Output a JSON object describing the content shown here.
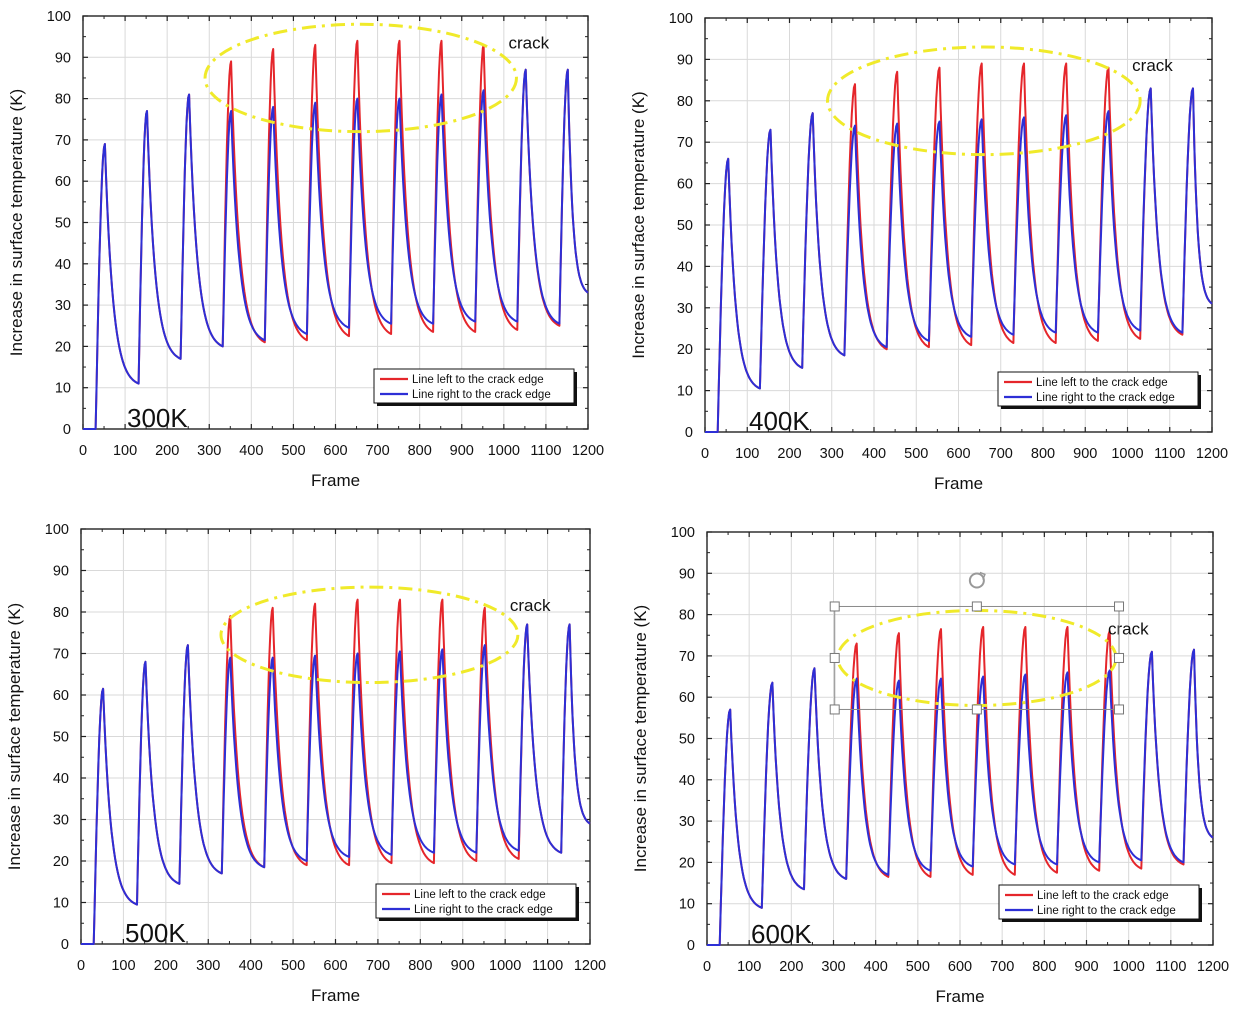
{
  "colors": {
    "left": "#e5262b",
    "right": "#2d2fd6",
    "ellipse": "#f0ea2a",
    "frame": "#222222",
    "grid": "#d9d9d9"
  },
  "chart_data": [
    {
      "type": "line",
      "panel_label": "300K",
      "xlabel": "Frame",
      "ylabel": "Increase in surface temperature (K)",
      "xlim": [
        0,
        1200
      ],
      "ylim": [
        0,
        100
      ],
      "x_ticks": [
        0,
        100,
        200,
        300,
        400,
        500,
        600,
        700,
        800,
        900,
        1000,
        1100,
        1200
      ],
      "y_ticks": [
        0,
        10,
        20,
        30,
        40,
        50,
        60,
        70,
        80,
        90,
        100
      ],
      "grid": true,
      "legend_position": "bottom-right",
      "annotation": "crack",
      "crack_region": {
        "x_range": [
          290,
          1030
        ],
        "y_range": [
          72,
          98
        ]
      },
      "series": [
        {
          "name": "Line left to the crack edge",
          "peaks": [
            [
              52,
              69
            ],
            [
              152,
              77
            ],
            [
              252,
              81
            ],
            [
              352,
              89
            ],
            [
              452,
              92
            ],
            [
              552,
              93
            ],
            [
              652,
              94
            ],
            [
              752,
              94
            ],
            [
              852,
              94
            ],
            [
              952,
              93
            ],
            [
              1052,
              87
            ],
            [
              1152,
              87
            ]
          ],
          "valleys": [
            [
              30,
              0
            ],
            [
              132,
              11
            ],
            [
              232,
              17
            ],
            [
              332,
              20
            ],
            [
              432,
              21
            ],
            [
              532,
              21.5
            ],
            [
              632,
              22.5
            ],
            [
              732,
              23
            ],
            [
              832,
              23.5
            ],
            [
              932,
              23.5
            ],
            [
              1032,
              24
            ],
            [
              1132,
              25
            ],
            [
              1200,
              33
            ]
          ]
        },
        {
          "name": "Line right to the crack edge",
          "peaks": [
            [
              52,
              69
            ],
            [
              152,
              77
            ],
            [
              252,
              81
            ],
            [
              352,
              77
            ],
            [
              452,
              78
            ],
            [
              552,
              79
            ],
            [
              652,
              80
            ],
            [
              752,
              80
            ],
            [
              852,
              81
            ],
            [
              952,
              82
            ],
            [
              1052,
              87
            ],
            [
              1152,
              87
            ]
          ],
          "valleys": [
            [
              30,
              0
            ],
            [
              132,
              11
            ],
            [
              232,
              17
            ],
            [
              332,
              20
            ],
            [
              432,
              21.5
            ],
            [
              532,
              23
            ],
            [
              632,
              24.5
            ],
            [
              732,
              25.5
            ],
            [
              832,
              25.5
            ],
            [
              932,
              26
            ],
            [
              1032,
              26
            ],
            [
              1132,
              25.5
            ],
            [
              1200,
              33
            ]
          ]
        }
      ]
    },
    {
      "type": "line",
      "panel_label": "400K",
      "xlabel": "Frame",
      "ylabel": "Increase in surface temperature (K)",
      "xlim": [
        0,
        1200
      ],
      "ylim": [
        0,
        100
      ],
      "x_ticks": [
        0,
        100,
        200,
        300,
        400,
        500,
        600,
        700,
        800,
        900,
        1000,
        1100,
        1200
      ],
      "y_ticks": [
        0,
        10,
        20,
        30,
        40,
        50,
        60,
        70,
        80,
        90,
        100
      ],
      "grid": true,
      "legend_position": "bottom-right",
      "annotation": "crack",
      "crack_region": {
        "x_range": [
          290,
          1030
        ],
        "y_range": [
          67,
          93
        ]
      },
      "series": [
        {
          "name": "Line left to the crack edge",
          "peaks": [
            [
              55,
              66
            ],
            [
              155,
              73
            ],
            [
              255,
              77
            ],
            [
              355,
              84
            ],
            [
              455,
              87
            ],
            [
              555,
              88
            ],
            [
              655,
              89
            ],
            [
              755,
              89
            ],
            [
              855,
              89
            ],
            [
              955,
              88
            ],
            [
              1055,
              83
            ],
            [
              1155,
              83
            ]
          ],
          "valleys": [
            [
              30,
              0
            ],
            [
              130,
              10.5
            ],
            [
              230,
              15.5
            ],
            [
              330,
              18.5
            ],
            [
              430,
              20
            ],
            [
              530,
              20.5
            ],
            [
              630,
              21
            ],
            [
              730,
              21.5
            ],
            [
              830,
              21.5
            ],
            [
              930,
              22
            ],
            [
              1030,
              22.5
            ],
            [
              1130,
              23.5
            ],
            [
              1200,
              31
            ]
          ]
        },
        {
          "name": "Line right to the crack edge",
          "peaks": [
            [
              55,
              66
            ],
            [
              155,
              73
            ],
            [
              255,
              77
            ],
            [
              355,
              74
            ],
            [
              455,
              74.5
            ],
            [
              555,
              75
            ],
            [
              655,
              75.5
            ],
            [
              755,
              76
            ],
            [
              855,
              76.5
            ],
            [
              955,
              77.5
            ],
            [
              1055,
              83
            ],
            [
              1155,
              83
            ]
          ],
          "valleys": [
            [
              30,
              0
            ],
            [
              130,
              10.5
            ],
            [
              230,
              15.5
            ],
            [
              330,
              18.5
            ],
            [
              430,
              20.5
            ],
            [
              530,
              22
            ],
            [
              630,
              23
            ],
            [
              730,
              23.5
            ],
            [
              830,
              24
            ],
            [
              930,
              24
            ],
            [
              1030,
              24.5
            ],
            [
              1130,
              24
            ],
            [
              1200,
              31
            ]
          ]
        }
      ]
    },
    {
      "type": "line",
      "panel_label": "500K",
      "xlabel": "Frame",
      "ylabel": "Increase in surface temperature (K)",
      "xlim": [
        0,
        1200
      ],
      "ylim": [
        0,
        100
      ],
      "x_ticks": [
        0,
        100,
        200,
        300,
        400,
        500,
        600,
        700,
        800,
        900,
        1000,
        1100,
        1200
      ],
      "y_ticks": [
        0,
        10,
        20,
        30,
        40,
        50,
        60,
        70,
        80,
        90,
        100
      ],
      "grid": true,
      "legend_position": "bottom-right",
      "annotation": "crack",
      "crack_region": {
        "x_range": [
          330,
          1030
        ],
        "y_range": [
          63,
          86
        ]
      },
      "series": [
        {
          "name": "Line left to the crack edge",
          "peaks": [
            [
              52,
              61.5
            ],
            [
              152,
              68
            ],
            [
              252,
              72
            ],
            [
              352,
              79
            ],
            [
              452,
              81
            ],
            [
              552,
              82
            ],
            [
              652,
              83
            ],
            [
              752,
              83
            ],
            [
              852,
              83
            ],
            [
              952,
              81
            ],
            [
              1052,
              77
            ],
            [
              1152,
              77
            ]
          ],
          "valleys": [
            [
              30,
              0
            ],
            [
              132,
              9.5
            ],
            [
              232,
              14.5
            ],
            [
              332,
              17
            ],
            [
              432,
              18.5
            ],
            [
              532,
              19
            ],
            [
              632,
              19
            ],
            [
              732,
              19.5
            ],
            [
              832,
              19.5
            ],
            [
              932,
              20
            ],
            [
              1032,
              20.5
            ],
            [
              1132,
              22
            ],
            [
              1200,
              29
            ]
          ]
        },
        {
          "name": "Line right to the crack edge",
          "peaks": [
            [
              52,
              61.5
            ],
            [
              152,
              68
            ],
            [
              252,
              72
            ],
            [
              352,
              69
            ],
            [
              452,
              69
            ],
            [
              552,
              69.5
            ],
            [
              652,
              70
            ],
            [
              752,
              70.5
            ],
            [
              852,
              71
            ],
            [
              952,
              72
            ],
            [
              1052,
              77
            ],
            [
              1152,
              77
            ]
          ],
          "valleys": [
            [
              30,
              0
            ],
            [
              132,
              9.5
            ],
            [
              232,
              14.5
            ],
            [
              332,
              17
            ],
            [
              432,
              18.5
            ],
            [
              532,
              20
            ],
            [
              632,
              21
            ],
            [
              732,
              21.5
            ],
            [
              832,
              22
            ],
            [
              932,
              22
            ],
            [
              1032,
              22.5
            ],
            [
              1132,
              22
            ],
            [
              1200,
              29
            ]
          ]
        }
      ]
    },
    {
      "type": "line",
      "panel_label": "600K",
      "xlabel": "Frame",
      "ylabel": "Increase in surface temperature (K)",
      "xlim": [
        0,
        1200
      ],
      "ylim": [
        0,
        100
      ],
      "x_ticks": [
        0,
        100,
        200,
        300,
        400,
        500,
        600,
        700,
        800,
        900,
        1000,
        1100,
        1200
      ],
      "y_ticks": [
        0,
        10,
        20,
        30,
        40,
        50,
        60,
        70,
        80,
        90,
        100
      ],
      "grid": true,
      "legend_position": "bottom-right",
      "annotation": "crack",
      "crack_region": {
        "x_range": [
          310,
          970
        ],
        "y_range": [
          58,
          81
        ]
      },
      "series": [
        {
          "name": "Line left to the crack edge",
          "peaks": [
            [
              55,
              57
            ],
            [
              155,
              63.5
            ],
            [
              255,
              67
            ],
            [
              355,
              73
            ],
            [
              455,
              75.5
            ],
            [
              555,
              76.5
            ],
            [
              655,
              77
            ],
            [
              755,
              77
            ],
            [
              855,
              77
            ],
            [
              955,
              76
            ],
            [
              1055,
              71
            ],
            [
              1155,
              71.5
            ]
          ],
          "valleys": [
            [
              30,
              0
            ],
            [
              130,
              9
            ],
            [
              230,
              13.5
            ],
            [
              330,
              16
            ],
            [
              430,
              16.5
            ],
            [
              530,
              16.5
            ],
            [
              630,
              17
            ],
            [
              730,
              17
            ],
            [
              830,
              17.5
            ],
            [
              930,
              18
            ],
            [
              1030,
              18.5
            ],
            [
              1130,
              19.5
            ],
            [
              1200,
              26
            ]
          ]
        },
        {
          "name": "Line right to the crack edge",
          "peaks": [
            [
              55,
              57
            ],
            [
              155,
              63.5
            ],
            [
              255,
              67
            ],
            [
              355,
              64.5
            ],
            [
              455,
              64
            ],
            [
              555,
              64.5
            ],
            [
              655,
              65
            ],
            [
              755,
              65.5
            ],
            [
              855,
              66
            ],
            [
              955,
              66.5
            ],
            [
              1055,
              71
            ],
            [
              1155,
              71.5
            ]
          ],
          "valleys": [
            [
              30,
              0
            ],
            [
              130,
              9
            ],
            [
              230,
              13.5
            ],
            [
              330,
              16
            ],
            [
              430,
              17
            ],
            [
              530,
              18
            ],
            [
              630,
              19
            ],
            [
              730,
              19.5
            ],
            [
              830,
              19.5
            ],
            [
              930,
              20
            ],
            [
              1030,
              20.5
            ],
            [
              1130,
              20
            ],
            [
              1200,
              26
            ]
          ]
        }
      ]
    }
  ]
}
